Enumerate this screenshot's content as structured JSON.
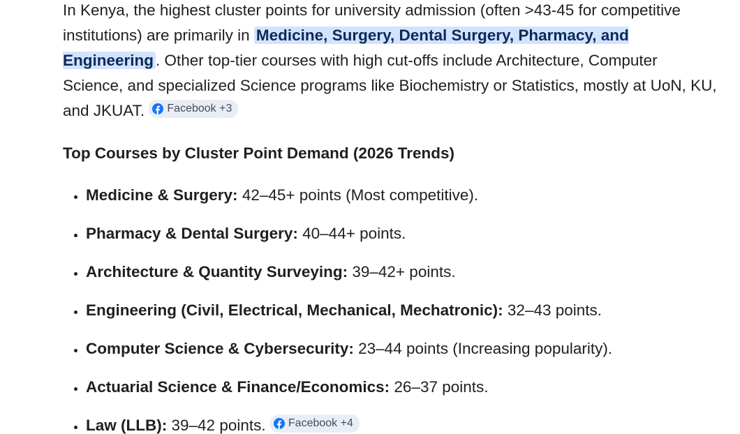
{
  "intro": {
    "lead": "In Kenya, the highest cluster points for university admission (often >43-45 for competitive institutions) are primarily in",
    "highlight": "Medicine, Surgery, Dental Surgery, Pharmacy, and Engineering",
    "tail": ". Other top-tier courses with high cut-offs include Architecture, Computer Science, and specialized Science programs like Biochemistry or Statistics, mostly at UoN, KU, and JKUAT.",
    "source": "Facebook +3"
  },
  "heading": "Top Courses by Cluster Point Demand (2026 Trends)",
  "items": [
    {
      "label": "Medicine & Surgery:",
      "text": "42–45+ points (Most competitive)."
    },
    {
      "label": "Pharmacy & Dental Surgery:",
      "text": "40–44+ points."
    },
    {
      "label": "Architecture & Quantity Surveying:",
      "text": "39–42+ points."
    },
    {
      "label": "Engineering (Civil, Electrical, Mechanical, Mechatronic):",
      "text": "32–43 points."
    },
    {
      "label": "Computer Science & Cybersecurity:",
      "text": "23–44 points (Increasing popularity)."
    },
    {
      "label": "Actuarial Science & Finance/Economics:",
      "text": "26–37 points."
    },
    {
      "label": "Law (LLB):",
      "text": "39–42 points.",
      "source": "Facebook +4"
    }
  ]
}
